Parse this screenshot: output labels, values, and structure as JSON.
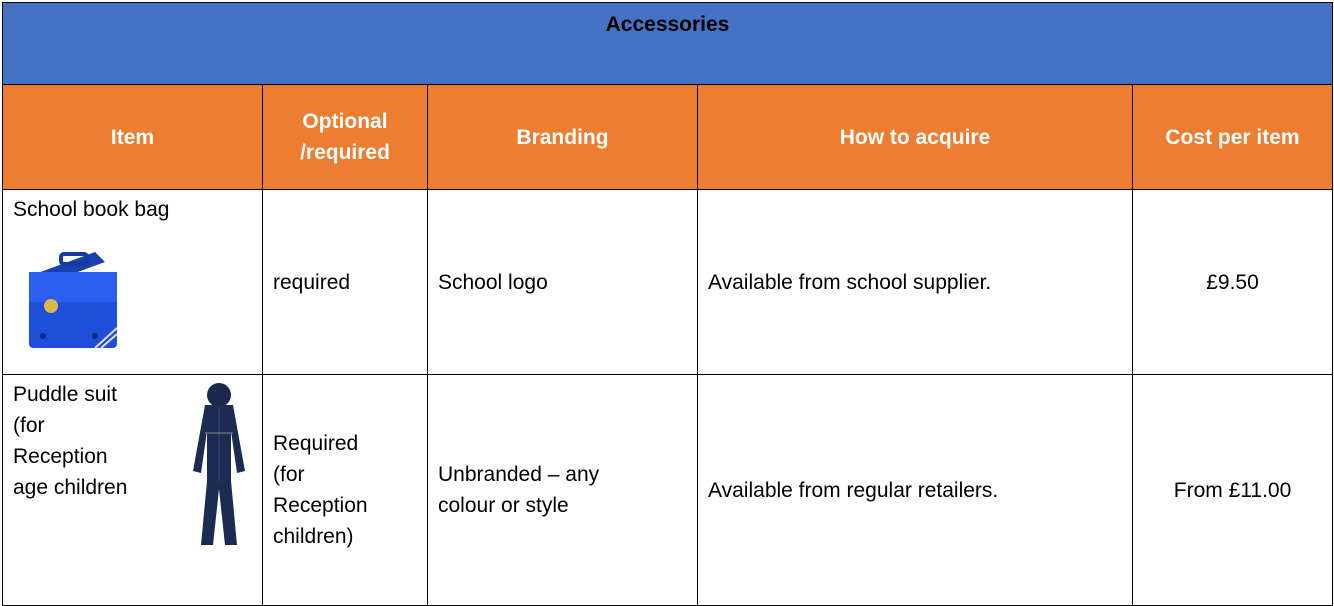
{
  "table": {
    "title": "Accessories",
    "headers": [
      "Item",
      "Optional /required",
      "Branding",
      "How to acquire",
      "Cost per item"
    ],
    "rows": [
      [
        "School book bag",
        "required",
        "School logo",
        "Available from school supplier.",
        "£9.50"
      ],
      [
        "Puddle suit (for Reception age children",
        "Required (for Reception children)",
        "Unbranded – any colour or style",
        "Available from regular retailers.",
        "From £11.00"
      ]
    ]
  }
}
